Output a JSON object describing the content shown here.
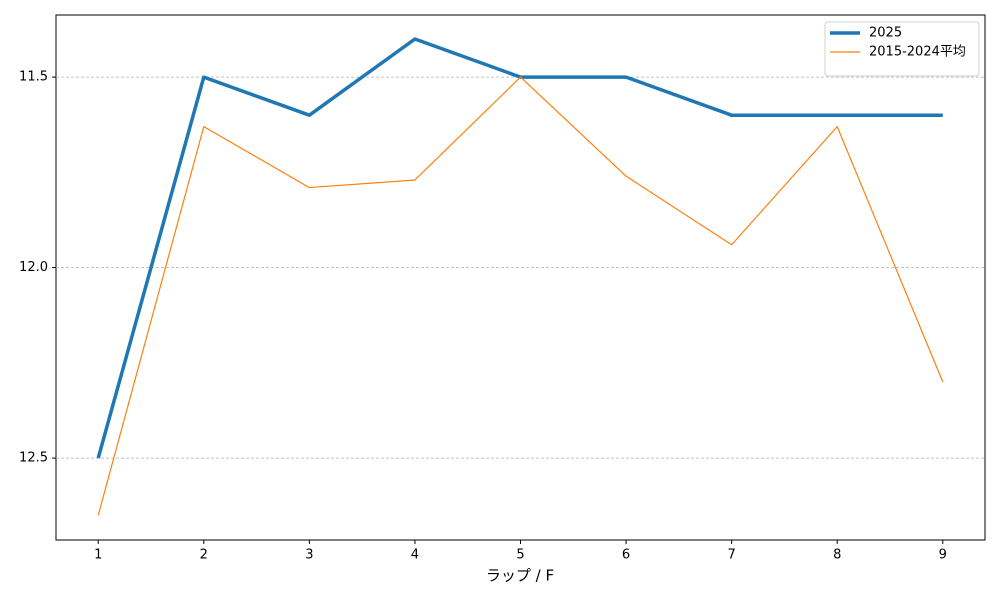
{
  "chart_data": {
    "type": "line",
    "xlabel": "ラップ / F",
    "x": [
      1,
      2,
      3,
      4,
      5,
      6,
      7,
      8,
      9
    ],
    "series": [
      {
        "name": "2025",
        "color": "#1f77b4",
        "line_width": 3.5,
        "values": [
          12.5,
          11.5,
          11.6,
          11.4,
          11.5,
          11.5,
          11.6,
          11.6,
          11.6
        ]
      },
      {
        "name": "2015-2024平均",
        "color": "#ff7f0e",
        "line_width": 1.2,
        "values": [
          12.65,
          11.63,
          11.79,
          11.77,
          11.5,
          11.76,
          11.94,
          11.63,
          12.3
        ]
      }
    ],
    "xlim": [
      0.6,
      9.4
    ],
    "xticks": [
      1,
      2,
      3,
      4,
      5,
      6,
      7,
      8,
      9
    ],
    "ylim": [
      12.715,
      11.337
    ],
    "yticks": [
      11.5,
      {
        "value": 12,
        "label": "12.0"
      },
      12.5
    ],
    "grid": true,
    "legend": "upper right"
  }
}
